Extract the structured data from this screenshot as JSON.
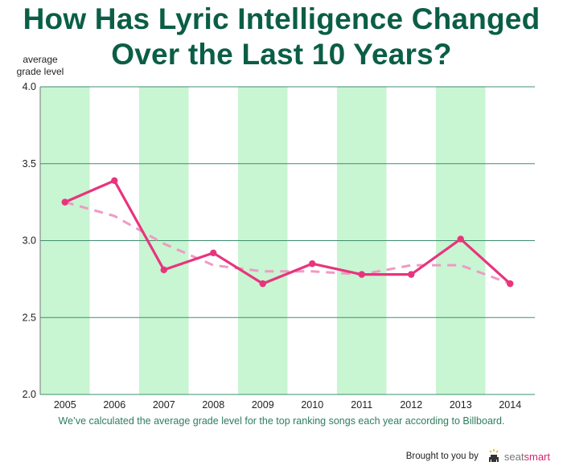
{
  "title_line1": "How Has Lyric Intelligence Changed",
  "title_line2": "Over the Last 10 Years?",
  "caption": "We’ve calculated the average grade level for the top ranking songs each year according to Billboard.",
  "footer": {
    "brought_by": "Brought to you by",
    "logo_part1": "seat",
    "logo_part2": "smart"
  },
  "colors": {
    "title": "#0b5e46",
    "band": "#c8f5d2",
    "grid": "#3f8f70",
    "line": "#e8347d",
    "trend": "#ef9ac4"
  },
  "chart_data": {
    "type": "line",
    "title": "How Has Lyric Intelligence Changed Over the Last 10 Years?",
    "ylabel_line1": "average",
    "ylabel_line2": "grade level",
    "xlabel": "",
    "categories": [
      "2005",
      "2006",
      "2007",
      "2008",
      "2009",
      "2010",
      "2011",
      "2012",
      "2013",
      "2014"
    ],
    "ylim": [
      2.0,
      4.0
    ],
    "yticks": [
      "2.0",
      "2.5",
      "3.0",
      "3.5",
      "4.0"
    ],
    "series": [
      {
        "values": [
          3.25,
          3.39,
          2.81,
          2.92,
          2.72,
          2.85,
          2.78,
          2.78,
          3.01,
          2.72
        ],
        "style": "solid",
        "markers": true
      },
      {
        "values": [
          3.25,
          3.16,
          2.98,
          2.84,
          2.8,
          2.8,
          2.78,
          2.84,
          2.84,
          2.72
        ],
        "style": "dashed",
        "markers": false
      }
    ],
    "shaded_bands": [
      "2005",
      "2007",
      "2009",
      "2011",
      "2013"
    ],
    "grid": true,
    "legend": "none"
  }
}
